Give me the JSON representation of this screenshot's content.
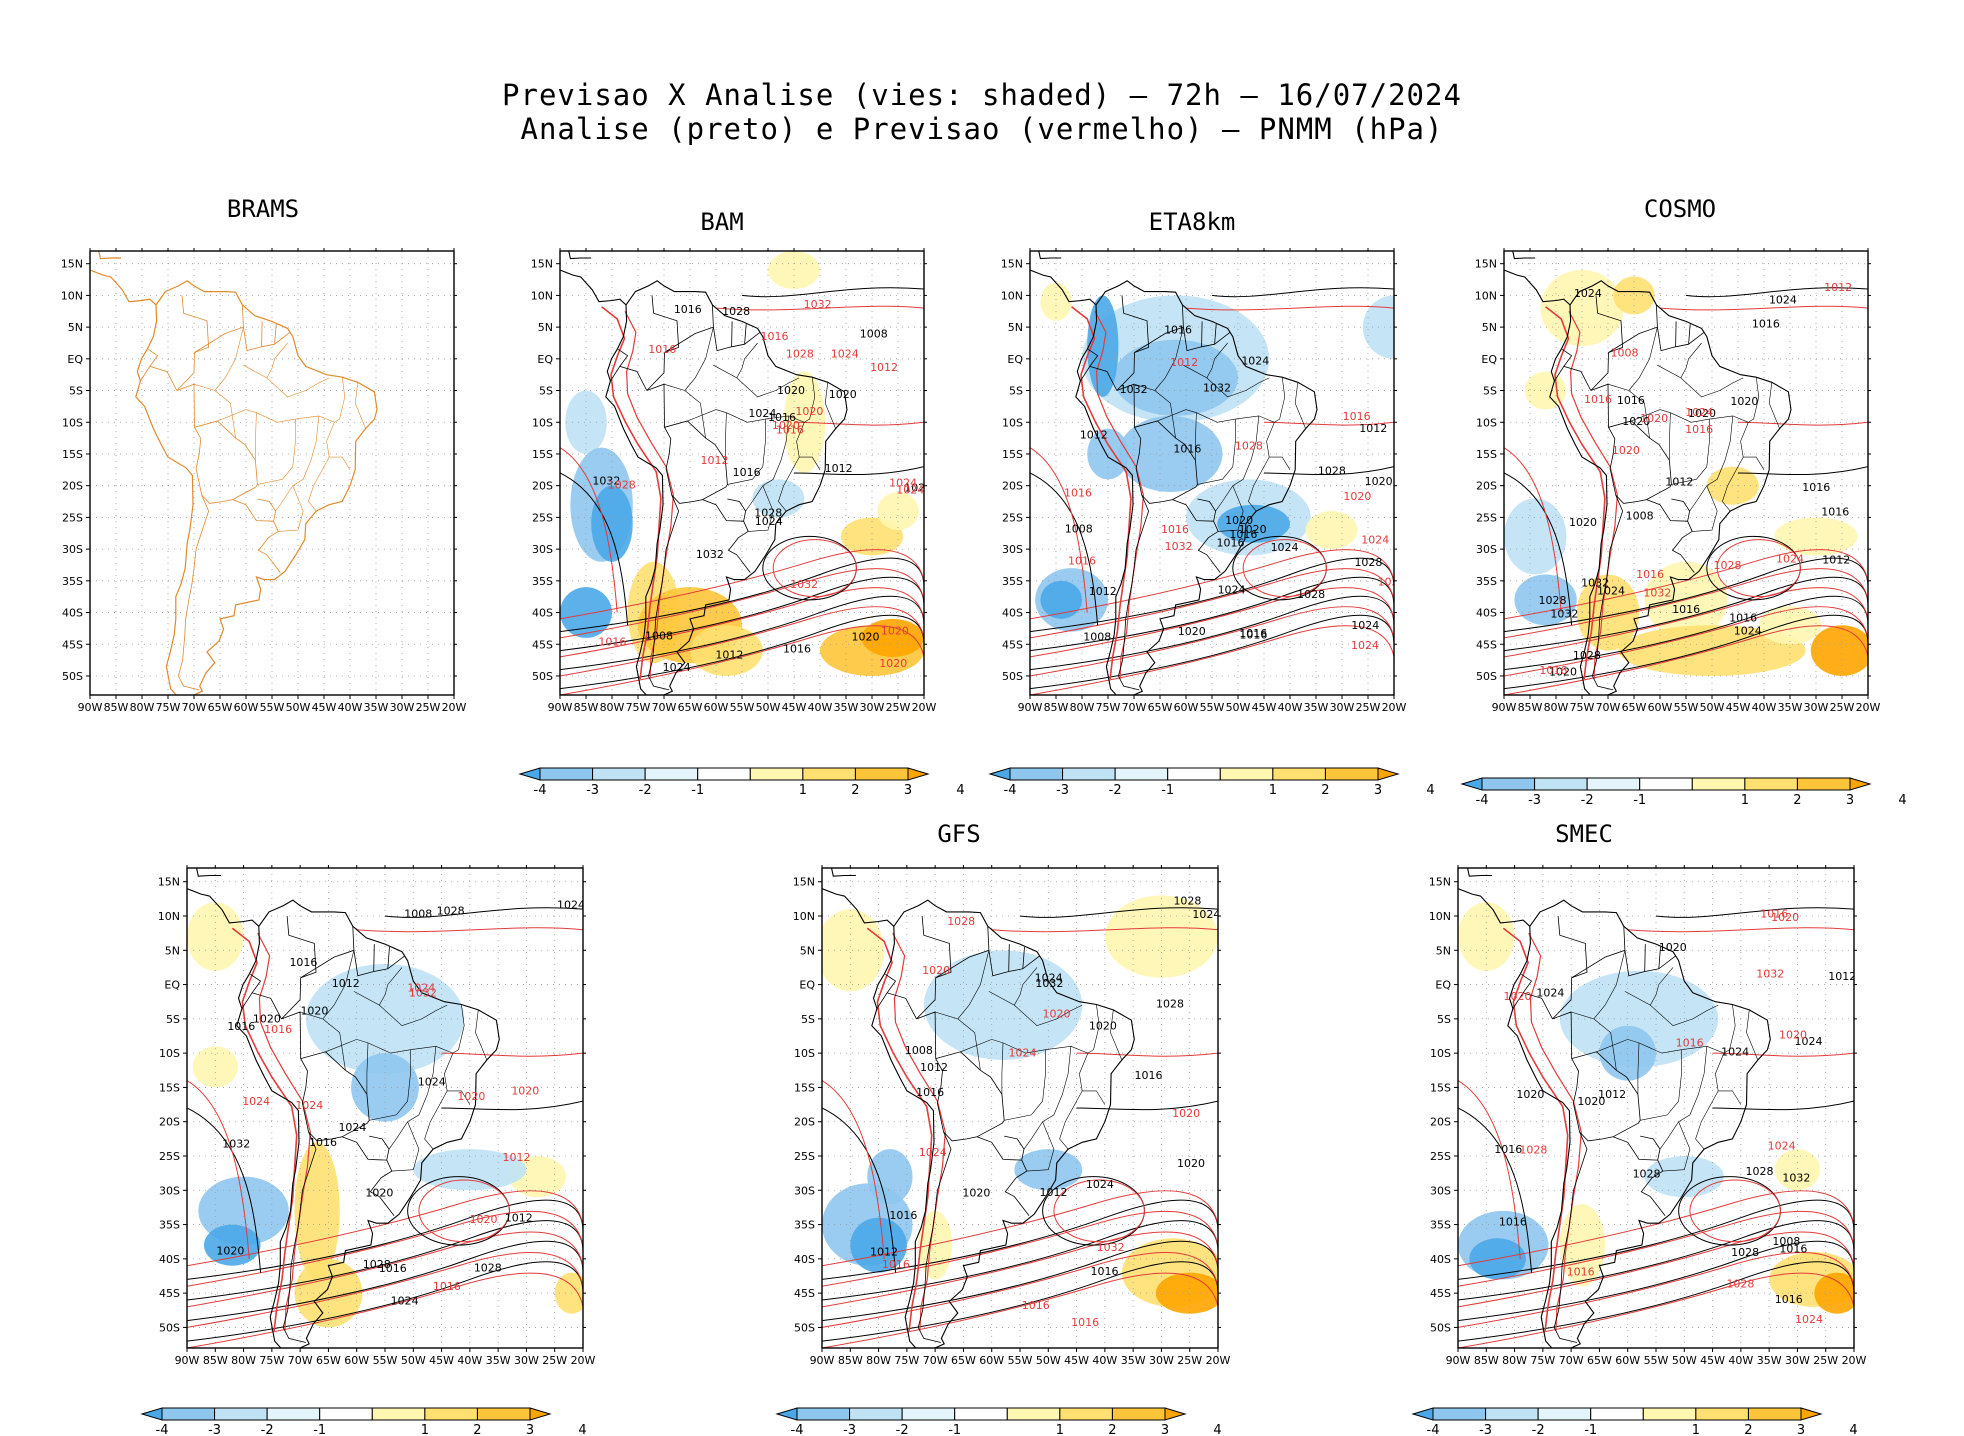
{
  "figure": {
    "title_line1": "Previsao X Analise (vies: shaded) – 72h – 16/07/2024",
    "title_line2": "Analise (preto) e Previsao (vermelho) – PNMM (hPa)"
  },
  "axes": {
    "lon_labels": [
      "90W",
      "85W",
      "80W",
      "75W",
      "70W",
      "65W",
      "60W",
      "55W",
      "50W",
      "45W",
      "40W",
      "35W",
      "30W",
      "25W",
      "20W"
    ],
    "lat_labels": [
      "15N",
      "10N",
      "5N",
      "EQ",
      "5S",
      "10S",
      "15S",
      "20S",
      "25S",
      "30S",
      "35S",
      "40S",
      "45S",
      "50S"
    ]
  },
  "colorbar": {
    "labels": [
      "-4",
      "-3",
      "-2",
      "-1",
      "1",
      "2",
      "3",
      "4"
    ],
    "colors": [
      "#4aa8e8",
      "#8ec6ee",
      "#bfe2f5",
      "#e3f4fb",
      "#ffffff",
      "#fff6b0",
      "#ffe071",
      "#ffc53a",
      "#ffa500"
    ]
  },
  "colors": {
    "analysis": "#000000",
    "forecast": "#e23b3b",
    "coast_brams": "#e08a2c",
    "grid": "#9a9a9a"
  },
  "panels": [
    {
      "id": "brams",
      "name": "BRAMS",
      "empty": true,
      "labels_black": [],
      "labels_red": []
    },
    {
      "id": "bam",
      "name": "BAM",
      "empty": false,
      "labels_black": [
        "1008",
        "1012",
        "1016",
        "1016",
        "1016",
        "1020",
        "1020",
        "1024",
        "1024",
        "1028",
        "1032",
        "1020",
        "1016",
        "1012",
        "1008",
        "1032",
        "1028",
        "1024",
        "1020"
      ],
      "labels_red": [
        "1016",
        "1016",
        "1012",
        "1012",
        "1016",
        "1020",
        "1020",
        "1024",
        "1028",
        "1032",
        "1024",
        "1020",
        "1016",
        "1032",
        "1028",
        "1024",
        "1020"
      ]
    },
    {
      "id": "eta",
      "name": "ETA8km",
      "empty": false,
      "labels_black": [
        "1008",
        "1012",
        "1016",
        "1016",
        "1012",
        "1016",
        "1016",
        "1020",
        "1024",
        "1016",
        "1020",
        "1024",
        "1028",
        "1032",
        "1028",
        "1024",
        "1020",
        "1032",
        "1028",
        "1024",
        "1020",
        "1016",
        "1012",
        "1008"
      ],
      "labels_red": [
        "1016",
        "1016",
        "1012",
        "1016",
        "1020",
        "1024",
        "1028",
        "1024",
        "1032",
        "1020",
        "1016"
      ]
    },
    {
      "id": "cosmo",
      "name": "COSMO",
      "empty": false,
      "labels_black": [
        "1016",
        "1012",
        "1008",
        "1016",
        "1016",
        "1012",
        "1016",
        "1020",
        "1016",
        "1020",
        "1020",
        "1024",
        "1024",
        "1028",
        "1032",
        "1024",
        "1020",
        "1016",
        "1032",
        "1028",
        "1024",
        "1020"
      ],
      "labels_red": [
        "1016",
        "1016",
        "1016",
        "1012",
        "1020",
        "1024",
        "1024",
        "1028",
        "1032",
        "1020",
        "1016",
        "1008"
      ]
    },
    {
      "id": "unk",
      "name": "",
      "empty": false,
      "labels_black": [
        "1016",
        "1012",
        "1008",
        "1016",
        "1020",
        "1016",
        "1024",
        "1020",
        "1020",
        "1024",
        "1024",
        "1028",
        "1028",
        "1032",
        "1028",
        "1024",
        "1020",
        "1016",
        "1012"
      ],
      "labels_red": [
        "1012",
        "1016",
        "1016",
        "1020",
        "1020",
        "1024",
        "1024",
        "1032",
        "1024",
        "1020"
      ]
    },
    {
      "id": "gfs",
      "name": "GFS",
      "empty": false,
      "labels_black": [
        "1012",
        "1008",
        "1016",
        "1016",
        "1012",
        "1016",
        "1020",
        "1020",
        "1024",
        "1024",
        "1028",
        "1032",
        "1028",
        "1024",
        "1020",
        "1016",
        "1012"
      ],
      "labels_red": [
        "1016",
        "1016",
        "1020",
        "1020",
        "1024",
        "1024",
        "1028",
        "1032",
        "1020",
        "1016"
      ]
    },
    {
      "id": "smec",
      "name": "SMEC",
      "empty": false,
      "labels_black": [
        "1012",
        "1008",
        "1016",
        "1016",
        "1016",
        "1020",
        "1020",
        "1024",
        "1024",
        "1028",
        "1028",
        "1032",
        "1028",
        "1024",
        "1020",
        "1016",
        "1012"
      ],
      "labels_red": [
        "1016",
        "1016",
        "1020",
        "1020",
        "1024",
        "1024",
        "1028",
        "1032",
        "1028",
        "1020",
        "1016"
      ]
    }
  ]
}
